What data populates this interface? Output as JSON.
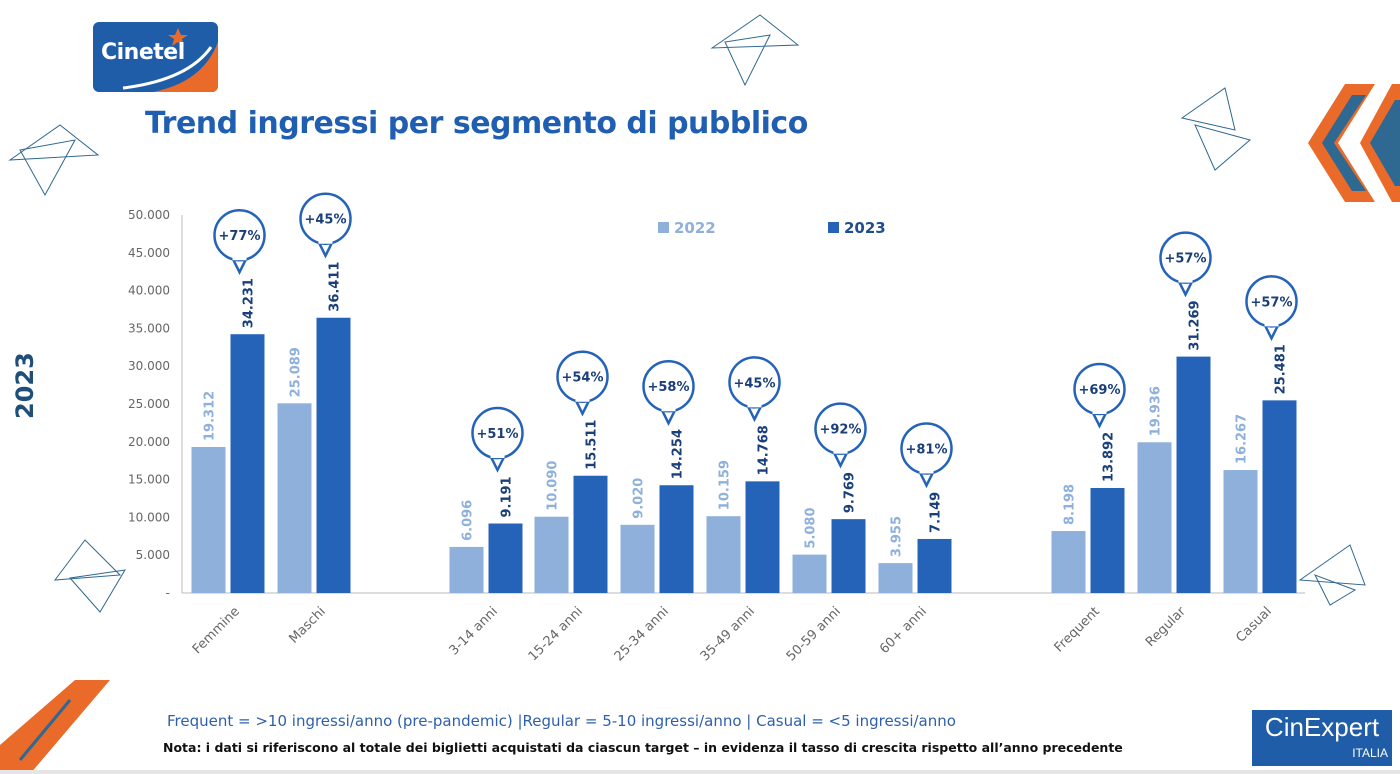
{
  "logo": {
    "text": "Cinetel"
  },
  "title": "Trend ingressi per segmento di pubblico",
  "side_label": "2023",
  "legend": [
    {
      "label": "2022",
      "color": "#8eb0db"
    },
    {
      "label": "2023",
      "color": "#2563b8"
    }
  ],
  "chart_data": {
    "type": "bar",
    "title": "",
    "xlabel": "",
    "ylabel": "",
    "ylim": [
      0,
      50000
    ],
    "yticks": [
      "-",
      "5.000",
      "10.000",
      "15.000",
      "20.000",
      "25.000",
      "30.000",
      "35.000",
      "40.000",
      "45.000",
      "50.000"
    ],
    "grid": false,
    "legend_position": "top-center",
    "categories": [
      "Femmine",
      "Maschi",
      "3-14 anni",
      "15-24 anni",
      "25-34 anni",
      "35-49 anni",
      "50-59 anni",
      "60+ anni",
      "Frequent",
      "Regular",
      "Casual"
    ],
    "series": [
      {
        "name": "2022",
        "values": [
          19312,
          25089,
          6096,
          10090,
          9020,
          10159,
          5080,
          3955,
          8198,
          19936,
          16267
        ],
        "labels": [
          "19.312",
          "25.089",
          "6.096",
          "10.090",
          "9.020",
          "10.159",
          "5.080",
          "3.955",
          "8.198",
          "19.936",
          "16.267"
        ]
      },
      {
        "name": "2023",
        "values": [
          34231,
          36411,
          9191,
          15511,
          14254,
          14768,
          9769,
          7149,
          13892,
          31269,
          25481
        ],
        "labels": [
          "34.231",
          "36.411",
          "9.191",
          "15.511",
          "14.254",
          "14.768",
          "9.769",
          "7.149",
          "13.892",
          "31.269",
          "25.481"
        ]
      }
    ],
    "growth_labels": [
      "+77%",
      "+45%",
      "+51%",
      "+54%",
      "+58%",
      "+45%",
      "+92%",
      "+81%",
      "+69%",
      "+57%",
      "+57%"
    ]
  },
  "footnote_definitions": "Frequent = >10 ingressi/anno (pre-pandemic) |Regular = 5-10 ingressi/anno | Casual = <5 ingressi/anno",
  "footnote_note": "Nota: i dati si riferiscono al totale dei biglietti acquistati da ciascun target – in evidenza il tasso di crescita rispetto all’anno precedente",
  "badge": {
    "name": "CinExpert",
    "sub": "ITALIA"
  },
  "colors": {
    "accent_blue": "#1f5eb0",
    "light_bar": "#8eb0db",
    "dark_bar": "#2563b8",
    "orange": "#ea6a2a"
  }
}
